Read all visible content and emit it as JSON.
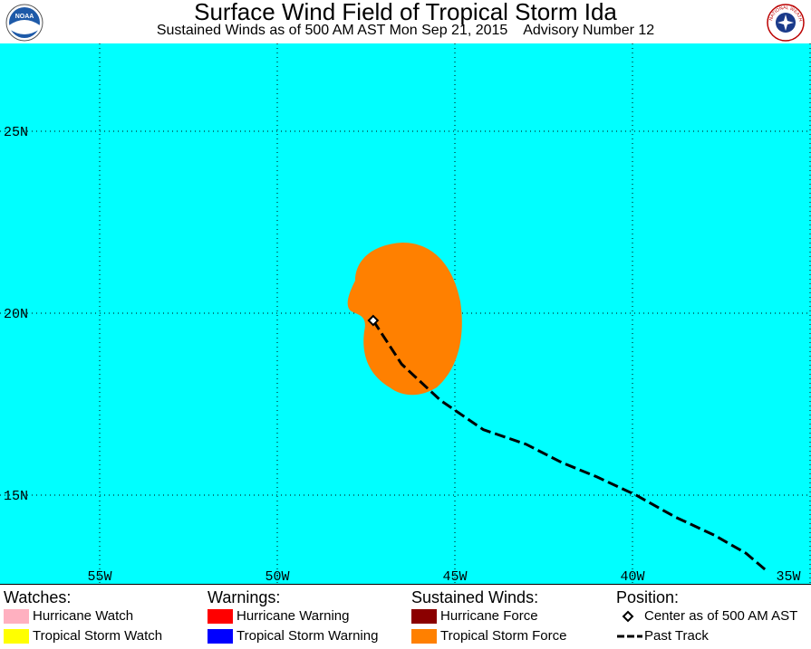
{
  "header": {
    "title": "Surface Wind Field of Tropical Storm Ida",
    "subtitle": "Sustained Winds as of 500 AM AST Mon Sep 21, 2015    Advisory Number 12",
    "noaa_logo_text": "NOAA",
    "nws_logo_text": "NATIONAL WEATHER SERVICE"
  },
  "map": {
    "ocean_color": "#00ffff",
    "lat_labels": [
      "25N",
      "20N",
      "15N"
    ],
    "lon_labels": [
      "55W",
      "50W",
      "45W",
      "40W",
      "35W"
    ],
    "storm_center": {
      "lat": 19.8,
      "lon": -47.3
    },
    "tropical_storm_wind_color": "#ff8000",
    "past_track": [
      {
        "lat": 19.8,
        "lon": -47.3
      },
      {
        "lat": 18.6,
        "lon": -46.5
      },
      {
        "lat": 17.6,
        "lon": -45.4
      },
      {
        "lat": 16.8,
        "lon": -44.2
      },
      {
        "lat": 16.4,
        "lon": -43.0
      },
      {
        "lat": 15.9,
        "lon": -42.0
      },
      {
        "lat": 15.5,
        "lon": -41.0
      },
      {
        "lat": 15.0,
        "lon": -39.9
      },
      {
        "lat": 14.4,
        "lon": -38.8
      },
      {
        "lat": 13.9,
        "lon": -37.7
      },
      {
        "lat": 13.4,
        "lon": -36.8
      },
      {
        "lat": 12.9,
        "lon": -36.2
      }
    ]
  },
  "legend": {
    "watches": {
      "heading": "Watches:",
      "items": [
        {
          "label": "Hurricane Watch",
          "color": "#ffb0c0"
        },
        {
          "label": "Tropical Storm Watch",
          "color": "#ffff00"
        }
      ]
    },
    "warnings": {
      "heading": "Warnings:",
      "items": [
        {
          "label": "Hurricane Warning",
          "color": "#ff0000"
        },
        {
          "label": "Tropical Storm Warning",
          "color": "#0000ff"
        }
      ]
    },
    "winds": {
      "heading": "Sustained Winds:",
      "items": [
        {
          "label": "Hurricane Force",
          "color": "#8b0000"
        },
        {
          "label": "Tropical Storm Force",
          "color": "#ff8000"
        }
      ]
    },
    "position": {
      "heading": "Position:",
      "items": [
        {
          "label": "Center as of 500 AM AST",
          "icon": "diamond-icon"
        },
        {
          "label": "Past Track",
          "icon": "dashed-line-icon"
        }
      ]
    }
  }
}
